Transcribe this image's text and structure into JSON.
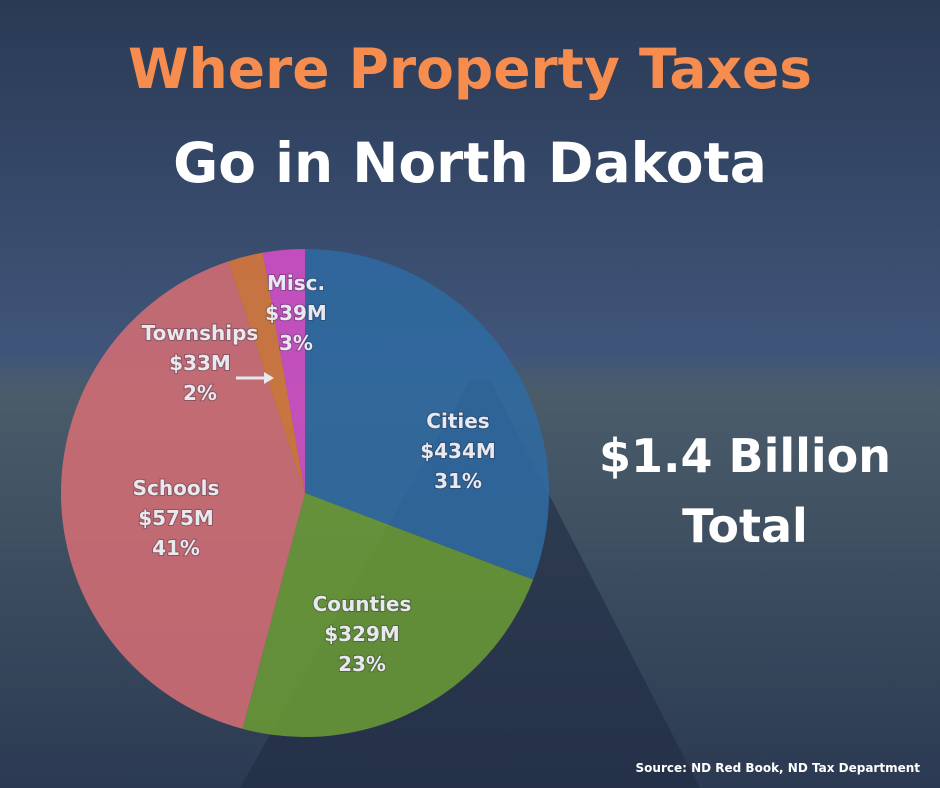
{
  "chart_data": {
    "type": "pie",
    "title": [
      "Where Property Taxes",
      "Go in North Dakota"
    ],
    "categories": [
      "Cities",
      "Counties",
      "Schools",
      "Townships",
      "Misc."
    ],
    "values": [
      434,
      329,
      575,
      33,
      39
    ],
    "value_labels": [
      "$434M",
      "$329M",
      "$575M",
      "$33M",
      "$39M"
    ],
    "percent_labels": [
      "31%",
      "23%",
      "41%",
      "2%",
      "3%"
    ],
    "colors": [
      "#2f6aa0",
      "#6a9a35",
      "#d36d74",
      "#d9793a",
      "#d44fc6"
    ],
    "total": [
      "$1.4 Billion",
      "Total"
    ],
    "source": "Source: ND Red Book, ND Tax Department"
  }
}
